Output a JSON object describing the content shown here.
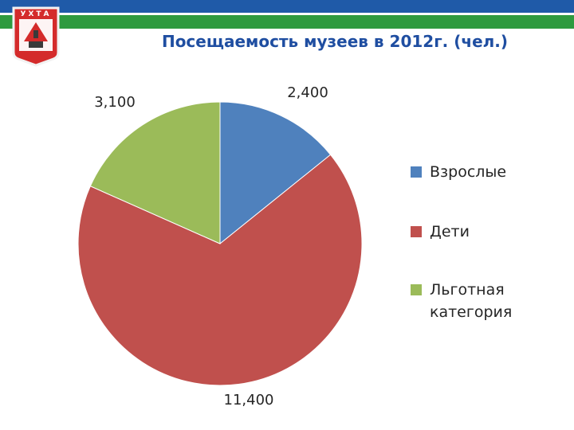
{
  "header": {
    "band_colors": {
      "blue": "#1f5aa8",
      "green": "#2e9a3f"
    },
    "crest": {
      "label": "УХТА",
      "shield_color": "#d42b2b",
      "border_color": "#f2f2f2"
    }
  },
  "title_color": "#1f4ea1",
  "chart_data": {
    "type": "pie",
    "title": "Посещаемость музеев в 2012г. (чел.)",
    "series": [
      {
        "name": "Посещаемость",
        "categories": [
          "Взрослые",
          "Дети",
          "Льготная категория"
        ],
        "values": [
          2400,
          11400,
          3100
        ],
        "value_labels": [
          "2,400",
          "11,400",
          "3,100"
        ],
        "colors": [
          "#4f81bd",
          "#c0504d",
          "#9bbb59"
        ]
      }
    ],
    "legend": {
      "position": "right",
      "items": [
        {
          "label_lines": [
            "Взрослые"
          ],
          "color": "#4f81bd"
        },
        {
          "label_lines": [
            "Дети"
          ],
          "color": "#c0504d"
        },
        {
          "label_lines": [
            "Льготная",
            "категория"
          ],
          "color": "#9bbb59"
        }
      ]
    },
    "start_angle_deg": 0,
    "direction": "clockwise"
  }
}
